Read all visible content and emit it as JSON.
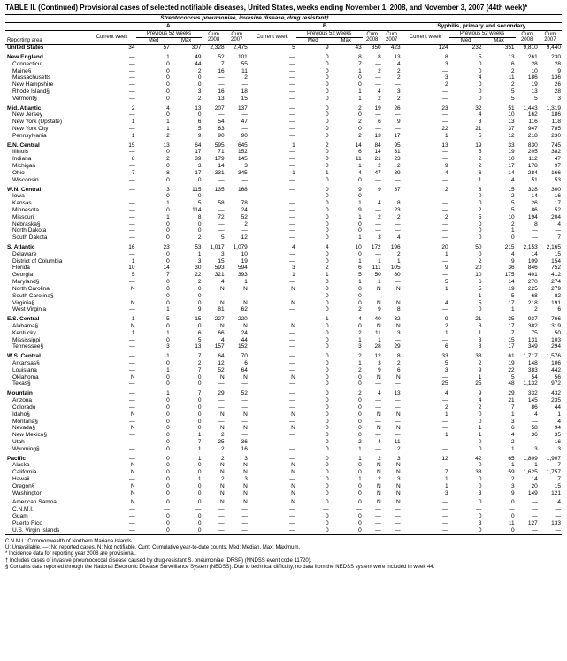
{
  "title": "TABLE II. (Continued) Provisional cases of selected notifiable diseases, United States, weeks ending November 1, 2008, and November 3, 2007 (44th week)*",
  "sub_title": "Streptococcus pneumoniae, invasive disease, drug resistant†",
  "section_a": "A",
  "section_b": "B",
  "section_syph": "Syphilis, primary and secondary",
  "col_reporting": "Reporting area",
  "col_current_week": "Current week",
  "col_prev52": "Previous 52 weeks",
  "col_med": "Med",
  "col_max": "Max",
  "col_cum": "Cum",
  "col_2008": "2008",
  "col_2007": "2007",
  "rows": [
    {
      "t": "r",
      "c": [
        "United States",
        "34",
        "57",
        "307",
        "2,328",
        "2,475",
        "5",
        "9",
        "43",
        "350",
        "423",
        "124",
        "232",
        "351",
        "9,810",
        "9,440"
      ]
    },
    {
      "t": "s"
    },
    {
      "t": "r",
      "c": [
        "New England",
        "—",
        "1",
        "49",
        "52",
        "101",
        "—",
        "0",
        "8",
        "8",
        "13",
        "8",
        "5",
        "13",
        "261",
        "230"
      ]
    },
    {
      "t": "i",
      "c": [
        "Connecticut",
        "—",
        "0",
        "44",
        "7",
        "55",
        "—",
        "0",
        "7",
        "—",
        "4",
        "3",
        "0",
        "6",
        "28",
        "28"
      ]
    },
    {
      "t": "i",
      "c": [
        "Maine§",
        "—",
        "0",
        "2",
        "16",
        "11",
        "—",
        "0",
        "1",
        "2",
        "2",
        "—",
        "0",
        "2",
        "10",
        "9"
      ]
    },
    {
      "t": "i",
      "c": [
        "Massachusetts",
        "—",
        "0",
        "0",
        "—",
        "2",
        "—",
        "0",
        "0",
        "—",
        "2",
        "3",
        "4",
        "11",
        "186",
        "136"
      ]
    },
    {
      "t": "i",
      "c": [
        "New Hampshire",
        "—",
        "0",
        "0",
        "—",
        "—",
        "—",
        "0",
        "0",
        "—",
        "—",
        "2",
        "0",
        "2",
        "19",
        "26"
      ]
    },
    {
      "t": "i",
      "c": [
        "Rhode Island§",
        "—",
        "0",
        "3",
        "16",
        "18",
        "—",
        "0",
        "1",
        "4",
        "3",
        "—",
        "0",
        "5",
        "13",
        "28"
      ]
    },
    {
      "t": "i",
      "c": [
        "Vermont§",
        "—",
        "0",
        "2",
        "13",
        "15",
        "—",
        "0",
        "1",
        "2",
        "2",
        "—",
        "0",
        "5",
        "5",
        "3"
      ]
    },
    {
      "t": "s"
    },
    {
      "t": "r",
      "c": [
        "Mid. Atlantic",
        "2",
        "4",
        "13",
        "207",
        "137",
        "—",
        "0",
        "2",
        "19",
        "26",
        "23",
        "32",
        "51",
        "1,443",
        "1,319"
      ]
    },
    {
      "t": "i",
      "c": [
        "New Jersey",
        "—",
        "0",
        "0",
        "—",
        "—",
        "—",
        "0",
        "0",
        "—",
        "—",
        "—",
        "4",
        "10",
        "162",
        "186"
      ]
    },
    {
      "t": "i",
      "c": [
        "New York (Upstate)",
        "1",
        "1",
        "6",
        "54",
        "47",
        "—",
        "0",
        "2",
        "6",
        "9",
        "—",
        "3",
        "13",
        "116",
        "118"
      ]
    },
    {
      "t": "i",
      "c": [
        "New York City",
        "—",
        "1",
        "5",
        "63",
        "—",
        "—",
        "0",
        "0",
        "—",
        "—",
        "22",
        "21",
        "37",
        "947",
        "785"
      ]
    },
    {
      "t": "i",
      "c": [
        "Pennsylvania",
        "1",
        "2",
        "9",
        "90",
        "90",
        "—",
        "0",
        "2",
        "13",
        "17",
        "1",
        "5",
        "12",
        "218",
        "230"
      ]
    },
    {
      "t": "s"
    },
    {
      "t": "r",
      "c": [
        "E.N. Central",
        "15",
        "13",
        "64",
        "595",
        "645",
        "1",
        "2",
        "14",
        "84",
        "95",
        "13",
        "19",
        "33",
        "830",
        "745"
      ]
    },
    {
      "t": "i",
      "c": [
        "Illinois",
        "—",
        "0",
        "17",
        "71",
        "152",
        "—",
        "0",
        "6",
        "14",
        "31",
        "—",
        "5",
        "19",
        "205",
        "382"
      ]
    },
    {
      "t": "i",
      "c": [
        "Indiana",
        "8",
        "2",
        "39",
        "179",
        "145",
        "—",
        "0",
        "11",
        "21",
        "23",
        "—",
        "2",
        "10",
        "112",
        "47"
      ]
    },
    {
      "t": "i",
      "c": [
        "Michigan",
        "—",
        "0",
        "3",
        "14",
        "3",
        "—",
        "0",
        "1",
        "2",
        "2",
        "9",
        "2",
        "17",
        "178",
        "97"
      ]
    },
    {
      "t": "i",
      "c": [
        "Ohio",
        "7",
        "8",
        "17",
        "331",
        "345",
        "1",
        "1",
        "4",
        "47",
        "39",
        "4",
        "6",
        "14",
        "284",
        "166"
      ]
    },
    {
      "t": "i",
      "c": [
        "Wisconsin",
        "—",
        "0",
        "0",
        "—",
        "—",
        "—",
        "0",
        "0",
        "—",
        "—",
        "—",
        "1",
        "4",
        "51",
        "53"
      ]
    },
    {
      "t": "s"
    },
    {
      "t": "r",
      "c": [
        "W.N. Central",
        "—",
        "3",
        "115",
        "135",
        "168",
        "—",
        "0",
        "9",
        "9",
        "37",
        "2",
        "8",
        "15",
        "328",
        "300"
      ]
    },
    {
      "t": "i",
      "c": [
        "Iowa",
        "—",
        "0",
        "0",
        "—",
        "—",
        "—",
        "0",
        "0",
        "—",
        "—",
        "—",
        "0",
        "2",
        "14",
        "16"
      ]
    },
    {
      "t": "i",
      "c": [
        "Kansas",
        "—",
        "1",
        "5",
        "58",
        "78",
        "—",
        "0",
        "1",
        "4",
        "8",
        "—",
        "0",
        "5",
        "26",
        "17"
      ]
    },
    {
      "t": "i",
      "c": [
        "Minnesota",
        "—",
        "0",
        "114",
        "—",
        "24",
        "—",
        "0",
        "9",
        "—",
        "23",
        "—",
        "2",
        "5",
        "86",
        "52"
      ]
    },
    {
      "t": "i",
      "c": [
        "Missouri",
        "—",
        "1",
        "8",
        "72",
        "52",
        "—",
        "0",
        "1",
        "2",
        "2",
        "2",
        "5",
        "10",
        "194",
        "204"
      ]
    },
    {
      "t": "i",
      "c": [
        "Nebraska§",
        "—",
        "0",
        "0",
        "—",
        "2",
        "—",
        "0",
        "0",
        "—",
        "—",
        "—",
        "0",
        "2",
        "8",
        "4"
      ]
    },
    {
      "t": "i",
      "c": [
        "North Dakota",
        "—",
        "0",
        "0",
        "—",
        "—",
        "—",
        "0",
        "0",
        "—",
        "—",
        "—",
        "0",
        "1",
        "—",
        "—"
      ]
    },
    {
      "t": "i",
      "c": [
        "South Dakota",
        "—",
        "0",
        "2",
        "5",
        "12",
        "—",
        "0",
        "1",
        "3",
        "4",
        "—",
        "0",
        "0",
        "—",
        "7"
      ]
    },
    {
      "t": "s"
    },
    {
      "t": "r",
      "c": [
        "S. Atlantic",
        "16",
        "23",
        "53",
        "1,017",
        "1,079",
        "4",
        "4",
        "10",
        "172",
        "196",
        "20",
        "50",
        "215",
        "2,153",
        "2,165"
      ]
    },
    {
      "t": "i",
      "c": [
        "Delaware",
        "—",
        "0",
        "1",
        "3",
        "10",
        "—",
        "0",
        "0",
        "—",
        "2",
        "1",
        "0",
        "4",
        "14",
        "15"
      ]
    },
    {
      "t": "i",
      "c": [
        "District of Columbia",
        "1",
        "0",
        "3",
        "15",
        "19",
        "—",
        "0",
        "1",
        "1",
        "1",
        "—",
        "2",
        "9",
        "109",
        "154"
      ]
    },
    {
      "t": "i",
      "c": [
        "Florida",
        "10",
        "14",
        "30",
        "593",
        "594",
        "3",
        "2",
        "6",
        "111",
        "105",
        "9",
        "20",
        "36",
        "846",
        "752"
      ]
    },
    {
      "t": "i",
      "c": [
        "Georgia",
        "5",
        "7",
        "22",
        "321",
        "393",
        "1",
        "1",
        "5",
        "50",
        "80",
        "—",
        "10",
        "175",
        "401",
        "412"
      ]
    },
    {
      "t": "i",
      "c": [
        "Maryland§",
        "—",
        "0",
        "2",
        "4",
        "1",
        "—",
        "0",
        "1",
        "1",
        "—",
        "5",
        "6",
        "14",
        "270",
        "274"
      ]
    },
    {
      "t": "i",
      "c": [
        "North Carolina",
        "N",
        "0",
        "0",
        "N",
        "N",
        "N",
        "0",
        "0",
        "N",
        "N",
        "1",
        "5",
        "19",
        "225",
        "279"
      ]
    },
    {
      "t": "i",
      "c": [
        "South Carolina§",
        "—",
        "0",
        "0",
        "—",
        "—",
        "—",
        "0",
        "0",
        "—",
        "—",
        "—",
        "1",
        "5",
        "68",
        "82"
      ]
    },
    {
      "t": "i",
      "c": [
        "Virginia§",
        "N",
        "0",
        "0",
        "N",
        "N",
        "N",
        "0",
        "0",
        "N",
        "N",
        "4",
        "5",
        "17",
        "218",
        "191"
      ]
    },
    {
      "t": "i",
      "c": [
        "West Virginia",
        "—",
        "1",
        "9",
        "81",
        "62",
        "—",
        "0",
        "2",
        "9",
        "8",
        "—",
        "0",
        "1",
        "2",
        "6"
      ]
    },
    {
      "t": "s"
    },
    {
      "t": "r",
      "c": [
        "E.S. Central",
        "1",
        "5",
        "15",
        "227",
        "220",
        "—",
        "1",
        "4",
        "40",
        "32",
        "9",
        "21",
        "35",
        "937",
        "766"
      ]
    },
    {
      "t": "i",
      "c": [
        "Alabama§",
        "N",
        "0",
        "0",
        "N",
        "N",
        "N",
        "0",
        "0",
        "N",
        "N",
        "2",
        "8",
        "17",
        "382",
        "319"
      ]
    },
    {
      "t": "i",
      "c": [
        "Kentucky",
        "1",
        "1",
        "6",
        "66",
        "24",
        "—",
        "0",
        "2",
        "11",
        "3",
        "1",
        "1",
        "7",
        "75",
        "50"
      ]
    },
    {
      "t": "i",
      "c": [
        "Mississippi",
        "—",
        "0",
        "5",
        "4",
        "44",
        "—",
        "0",
        "1",
        "1",
        "—",
        "—",
        "3",
        "15",
        "131",
        "103"
      ]
    },
    {
      "t": "i",
      "c": [
        "Tennessee§",
        "—",
        "3",
        "13",
        "157",
        "152",
        "—",
        "0",
        "3",
        "28",
        "29",
        "6",
        "8",
        "17",
        "349",
        "294"
      ]
    },
    {
      "t": "s"
    },
    {
      "t": "r",
      "c": [
        "W.S. Central",
        "—",
        "1",
        "7",
        "64",
        "70",
        "—",
        "0",
        "2",
        "12",
        "8",
        "33",
        "38",
        "61",
        "1,717",
        "1,576"
      ]
    },
    {
      "t": "i",
      "c": [
        "Arkansas§",
        "—",
        "0",
        "2",
        "12",
        "6",
        "—",
        "0",
        "1",
        "3",
        "2",
        "5",
        "2",
        "19",
        "148",
        "106"
      ]
    },
    {
      "t": "i",
      "c": [
        "Louisiana",
        "—",
        "1",
        "7",
        "52",
        "64",
        "—",
        "0",
        "2",
        "9",
        "6",
        "3",
        "9",
        "22",
        "383",
        "442"
      ]
    },
    {
      "t": "i",
      "c": [
        "Oklahoma",
        "N",
        "0",
        "0",
        "N",
        "N",
        "N",
        "0",
        "0",
        "N",
        "N",
        "—",
        "1",
        "5",
        "54",
        "56"
      ]
    },
    {
      "t": "i",
      "c": [
        "Texas§",
        "—",
        "0",
        "0",
        "—",
        "—",
        "—",
        "0",
        "0",
        "—",
        "—",
        "25",
        "25",
        "48",
        "1,132",
        "972"
      ]
    },
    {
      "t": "s"
    },
    {
      "t": "r",
      "c": [
        "Mountain",
        "—",
        "1",
        "7",
        "29",
        "52",
        "—",
        "0",
        "2",
        "4",
        "13",
        "4",
        "9",
        "29",
        "332",
        "432"
      ]
    },
    {
      "t": "i",
      "c": [
        "Arizona",
        "—",
        "0",
        "0",
        "—",
        "—",
        "—",
        "0",
        "0",
        "—",
        "—",
        "—",
        "4",
        "21",
        "145",
        "235"
      ]
    },
    {
      "t": "i",
      "c": [
        "Colorado",
        "—",
        "0",
        "0",
        "—",
        "—",
        "—",
        "0",
        "0",
        "—",
        "—",
        "2",
        "2",
        "7",
        "86",
        "44"
      ]
    },
    {
      "t": "i",
      "c": [
        "Idaho§",
        "N",
        "0",
        "0",
        "N",
        "N",
        "N",
        "0",
        "0",
        "N",
        "N",
        "1",
        "0",
        "1",
        "4",
        "1"
      ]
    },
    {
      "t": "i",
      "c": [
        "Montana§",
        "—",
        "0",
        "0",
        "—",
        "—",
        "—",
        "0",
        "0",
        "—",
        "—",
        "—",
        "0",
        "3",
        "—",
        "4"
      ]
    },
    {
      "t": "i",
      "c": [
        "Nevada§",
        "N",
        "0",
        "0",
        "N",
        "N",
        "N",
        "0",
        "0",
        "N",
        "N",
        "—",
        "1",
        "6",
        "58",
        "94"
      ]
    },
    {
      "t": "i",
      "c": [
        "New Mexico§",
        "—",
        "0",
        "1",
        "2",
        "—",
        "—",
        "0",
        "0",
        "—",
        "—",
        "1",
        "1",
        "4",
        "36",
        "35"
      ]
    },
    {
      "t": "i",
      "c": [
        "Utah",
        "—",
        "0",
        "7",
        "25",
        "36",
        "—",
        "0",
        "2",
        "4",
        "11",
        "—",
        "0",
        "2",
        "—",
        "16"
      ]
    },
    {
      "t": "i",
      "c": [
        "Wyoming§",
        "—",
        "0",
        "1",
        "2",
        "16",
        "—",
        "0",
        "1",
        "—",
        "2",
        "—",
        "0",
        "1",
        "3",
        "3"
      ]
    },
    {
      "t": "s"
    },
    {
      "t": "r",
      "c": [
        "Pacific",
        "—",
        "0",
        "1",
        "2",
        "3",
        "—",
        "0",
        "1",
        "2",
        "3",
        "12",
        "42",
        "65",
        "1,809",
        "1,907"
      ]
    },
    {
      "t": "i",
      "c": [
        "Alaska",
        "N",
        "0",
        "0",
        "N",
        "N",
        "N",
        "0",
        "0",
        "N",
        "N",
        "—",
        "0",
        "1",
        "1",
        "7"
      ]
    },
    {
      "t": "i",
      "c": [
        "California",
        "N",
        "0",
        "0",
        "N",
        "N",
        "N",
        "0",
        "0",
        "N",
        "N",
        "7",
        "38",
        "59",
        "1,625",
        "1,757"
      ]
    },
    {
      "t": "i",
      "c": [
        "Hawaii",
        "—",
        "0",
        "1",
        "2",
        "3",
        "—",
        "0",
        "1",
        "2",
        "3",
        "1",
        "0",
        "2",
        "14",
        "7"
      ]
    },
    {
      "t": "i",
      "c": [
        "Oregon§",
        "N",
        "0",
        "0",
        "N",
        "N",
        "N",
        "0",
        "0",
        "N",
        "N",
        "1",
        "0",
        "3",
        "20",
        "15"
      ]
    },
    {
      "t": "i",
      "c": [
        "Washington",
        "N",
        "0",
        "0",
        "N",
        "N",
        "N",
        "0",
        "0",
        "N",
        "N",
        "3",
        "3",
        "9",
        "149",
        "121"
      ]
    },
    {
      "t": "s"
    },
    {
      "t": "i",
      "c": [
        "American Samoa",
        "N",
        "0",
        "0",
        "N",
        "N",
        "N",
        "0",
        "0",
        "N",
        "N",
        "—",
        "0",
        "0",
        "—",
        "4"
      ]
    },
    {
      "t": "i",
      "c": [
        "C.N.M.I.",
        "—",
        "—",
        "—",
        "—",
        "—",
        "—",
        "—",
        "—",
        "—",
        "—",
        "—",
        "—",
        "—",
        "—",
        "—"
      ]
    },
    {
      "t": "i",
      "c": [
        "Guam",
        "—",
        "0",
        "0",
        "—",
        "—",
        "—",
        "0",
        "0",
        "—",
        "—",
        "—",
        "0",
        "0",
        "—",
        "—"
      ]
    },
    {
      "t": "i",
      "c": [
        "Puerto Rico",
        "—",
        "0",
        "0",
        "—",
        "—",
        "—",
        "0",
        "0",
        "—",
        "—",
        "—",
        "3",
        "11",
        "127",
        "133"
      ]
    },
    {
      "t": "i",
      "c": [
        "U.S. Virgin Islands",
        "—",
        "0",
        "0",
        "—",
        "—",
        "—",
        "0",
        "0",
        "—",
        "—",
        "—",
        "0",
        "0",
        "—",
        "—"
      ]
    }
  ],
  "footnotes": [
    "C.N.M.I.: Commonwealth of Northern Mariana Islands.",
    "U: Unavailable.   —: No reported cases.   N: Not notifiable.   Cum: Cumulative year-to-date counts.   Med: Median.   Max: Maximum.",
    "* Incidence data for reporting year 2008 are provisional.",
    "† Includes cases of invasive pneumococcal disease caused by drug-resistant S. pneumoniae (DRSP) (NNDSS event code 11720).",
    "§ Contains data reported through the National Electronic Disease Surveillance System (NEDSS). Due to technical difficulty, no data from the NEDSS system were included in week 44."
  ]
}
